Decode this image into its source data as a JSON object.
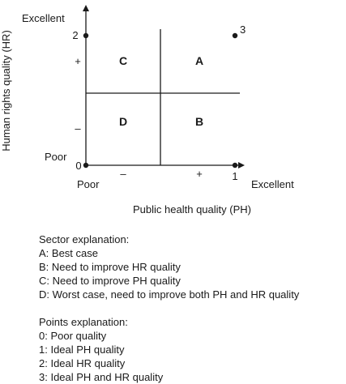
{
  "diagram": {
    "x_axis": {
      "title": "Public health quality (PH)",
      "low_label": "Poor",
      "high_label": "Excellent",
      "minus": "–",
      "plus": "+"
    },
    "y_axis": {
      "title": "Human rights quality (HR)",
      "low_label": "Poor",
      "high_label": "Excellent",
      "minus": "–",
      "plus": "+"
    },
    "tick_labels": {
      "origin": "0",
      "x_one": "1",
      "y_two": "2"
    },
    "points": [
      {
        "id": "0",
        "label": ""
      },
      {
        "id": "1",
        "label": ""
      },
      {
        "id": "2",
        "label": ""
      },
      {
        "id": "3",
        "label": "3"
      }
    ],
    "sectors": {
      "A": "A",
      "B": "B",
      "C": "C",
      "D": "D"
    }
  },
  "sector_explanation": {
    "heading": "Sector explanation:",
    "items": [
      "A: Best case",
      "B: Need to improve HR quality",
      "C: Need to improve PH quality",
      "D: Worst case, need to improve both PH and HR quality"
    ]
  },
  "points_explanation": {
    "heading": "Points explanation:",
    "items": [
      "0: Poor quality",
      "1: Ideal PH quality",
      "2: Ideal HR quality",
      "3: Ideal PH and HR quality"
    ]
  },
  "colors": {
    "ink": "#1a1a1a",
    "background": "#ffffff"
  }
}
